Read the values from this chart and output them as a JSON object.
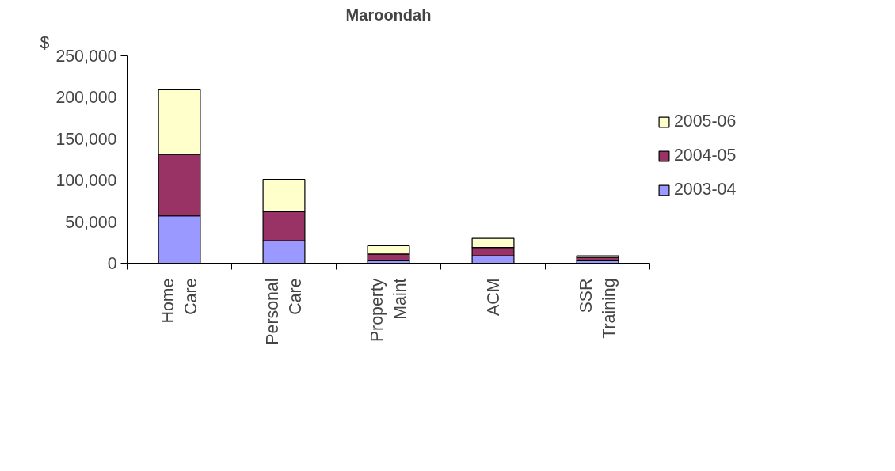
{
  "chart_data": {
    "type": "bar",
    "title": "Maroondah",
    "ylabel": "$",
    "stacked": true,
    "categories": [
      "Home Care",
      "Personal Care",
      "Property Maint",
      "ACM",
      "SSR Training"
    ],
    "series": [
      {
        "name": "2003-04",
        "color": "#9999ff",
        "values": [
          57000,
          27000,
          3000,
          9000,
          3000
        ]
      },
      {
        "name": "2004-05",
        "color": "#993366",
        "values": [
          74000,
          35000,
          8000,
          10000,
          4000
        ]
      },
      {
        "name": "2005-06",
        "color": "#ffffcc",
        "values": [
          78000,
          39000,
          10000,
          11000,
          2000
        ]
      }
    ],
    "ylim": [
      0,
      250000
    ],
    "yticks": [
      {
        "value": 0,
        "label": "0"
      },
      {
        "value": 50000,
        "label": "50,000"
      },
      {
        "value": 100000,
        "label": "100,000"
      },
      {
        "value": 150000,
        "label": "150,000"
      },
      {
        "value": 200000,
        "label": "200,000"
      },
      {
        "value": 250000,
        "label": "250,000"
      }
    ],
    "grid": false,
    "legend": "right"
  }
}
